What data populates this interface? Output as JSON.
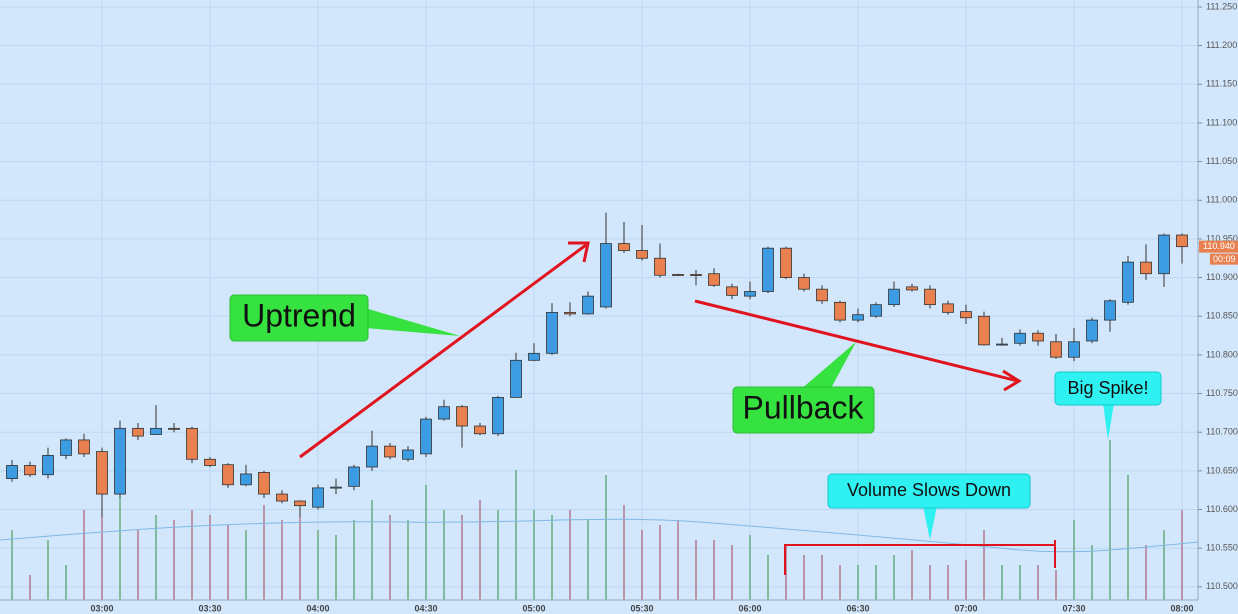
{
  "chart_data": {
    "type": "candlestick",
    "categories": [
      null,
      null,
      null,
      null,
      null,
      "03:00",
      null,
      null,
      null,
      null,
      null,
      "03:30",
      null,
      null,
      null,
      null,
      null,
      "04:00",
      null,
      null,
      null,
      null,
      null,
      "04:30",
      null,
      null,
      null,
      null,
      null,
      "05:00",
      null,
      null,
      null,
      null,
      null,
      "05:30",
      null,
      null,
      null,
      null,
      null,
      "06:00",
      null,
      null,
      null,
      null,
      null,
      "06:30",
      null,
      null,
      null,
      null,
      null,
      "07:00",
      null,
      null,
      null,
      null,
      null,
      "07:30",
      null,
      null,
      null,
      null,
      null,
      "08:00"
    ],
    "open": [
      110.64,
      110.657,
      110.645,
      110.67,
      110.69,
      110.675,
      110.62,
      110.705,
      110.697,
      110.705,
      110.705,
      110.665,
      110.658,
      110.632,
      110.648,
      110.62,
      110.611,
      110.603,
      110.628,
      110.63,
      110.655,
      110.682,
      110.665,
      110.672,
      110.717,
      110.733,
      110.708,
      110.698,
      110.745,
      110.793,
      110.802,
      110.855,
      110.853,
      110.862,
      110.944,
      110.935,
      110.925,
      110.904,
      110.904,
      110.905,
      110.888,
      110.876,
      110.882,
      110.938,
      110.9,
      110.885,
      110.868,
      110.845,
      110.85,
      110.865,
      110.888,
      110.885,
      110.866,
      110.856,
      110.85,
      110.813,
      110.815,
      110.828,
      110.817,
      110.797,
      110.818,
      110.845,
      110.868,
      110.92,
      110.905,
      110.955
    ],
    "high": [
      110.664,
      110.662,
      110.68,
      110.692,
      110.698,
      110.68,
      110.715,
      110.712,
      110.735,
      110.712,
      110.707,
      110.668,
      110.66,
      110.658,
      110.65,
      110.625,
      110.612,
      110.632,
      110.64,
      110.658,
      110.702,
      110.686,
      110.682,
      110.72,
      110.742,
      110.735,
      110.712,
      110.747,
      110.803,
      110.815,
      110.867,
      110.868,
      110.882,
      110.984,
      110.972,
      110.968,
      110.944,
      110.905,
      110.91,
      110.912,
      110.892,
      110.895,
      110.94,
      110.94,
      110.905,
      110.89,
      110.87,
      110.86,
      110.868,
      110.895,
      110.892,
      110.89,
      110.87,
      110.865,
      110.856,
      110.822,
      110.833,
      110.832,
      110.827,
      110.835,
      110.848,
      110.872,
      110.928,
      110.943,
      110.957,
      110.957
    ],
    "low": [
      110.636,
      110.642,
      110.64,
      110.665,
      110.668,
      110.59,
      110.615,
      110.69,
      110.697,
      110.7,
      110.66,
      110.655,
      110.628,
      110.63,
      110.615,
      110.608,
      110.59,
      110.6,
      110.62,
      110.625,
      110.65,
      110.665,
      110.662,
      110.668,
      110.715,
      110.68,
      110.696,
      110.695,
      110.745,
      110.792,
      110.8,
      110.85,
      110.852,
      110.86,
      110.932,
      110.922,
      110.9,
      110.902,
      110.89,
      110.888,
      110.872,
      110.872,
      110.88,
      110.898,
      110.882,
      110.866,
      110.842,
      110.842,
      110.848,
      110.862,
      110.882,
      110.86,
      110.852,
      110.84,
      110.812,
      110.812,
      110.812,
      110.812,
      110.795,
      110.792,
      110.815,
      110.83,
      110.865,
      110.897,
      110.888,
      110.918
    ],
    "close": [
      110.657,
      110.645,
      110.67,
      110.69,
      110.672,
      110.62,
      110.705,
      110.695,
      110.705,
      110.704,
      110.665,
      110.657,
      110.632,
      110.646,
      110.62,
      110.611,
      110.605,
      110.628,
      110.629,
      110.655,
      110.682,
      110.668,
      110.677,
      110.717,
      110.733,
      110.708,
      110.698,
      110.745,
      110.793,
      110.802,
      110.855,
      110.853,
      110.876,
      110.944,
      110.935,
      110.925,
      110.903,
      110.903,
      110.903,
      110.89,
      110.877,
      110.882,
      110.938,
      110.9,
      110.885,
      110.87,
      110.845,
      110.852,
      110.865,
      110.885,
      110.884,
      110.865,
      110.855,
      110.848,
      110.813,
      110.814,
      110.828,
      110.818,
      110.797,
      110.817,
      110.845,
      110.87,
      110.92,
      110.905,
      110.955,
      110.94
    ],
    "volume": [
      70,
      25,
      60,
      35,
      90,
      95,
      110,
      70,
      85,
      80,
      90,
      85,
      75,
      70,
      95,
      80,
      85,
      70,
      65,
      80,
      100,
      85,
      80,
      115,
      90,
      85,
      100,
      90,
      130,
      90,
      85,
      90,
      80,
      125,
      95,
      70,
      75,
      80,
      60,
      60,
      55,
      65,
      45,
      55,
      45,
      45,
      35,
      35,
      35,
      45,
      50,
      35,
      35,
      40,
      70,
      35,
      35,
      35,
      30,
      80,
      55,
      160,
      125,
      55,
      70,
      90
    ],
    "up_color": "#3d9be2",
    "down_color": "#e8814f",
    "volume_up_color": "#2f8f3c",
    "volume_down_color": "#a3405a",
    "ylim": [
      110.483,
      111.259
    ],
    "y2lim": [
      0,
      200
    ],
    "yticks": [
      {
        "value": 110.5,
        "label": "110.500"
      },
      {
        "value": 110.55,
        "label": "110.550"
      },
      {
        "value": 110.6,
        "label": "110.600"
      },
      {
        "value": 110.65,
        "label": "110.650"
      },
      {
        "value": 110.7,
        "label": "110.700"
      },
      {
        "value": 110.75,
        "label": "110.750"
      },
      {
        "value": 110.8,
        "label": "110.800"
      },
      {
        "value": 110.85,
        "label": "110.850"
      },
      {
        "value": 110.9,
        "label": "110.900"
      },
      {
        "value": 110.95,
        "label": "110.950"
      },
      {
        "value": 111.0,
        "label": "111.000"
      },
      {
        "value": 111.05,
        "label": "111.050"
      },
      {
        "value": 111.1,
        "label": "111.100"
      },
      {
        "value": 111.15,
        "label": "111.150"
      },
      {
        "value": 111.2,
        "label": "111.200"
      },
      {
        "value": 111.25,
        "label": "111.250"
      }
    ],
    "grid": true,
    "last_price": {
      "value": 110.94,
      "label": "110.940"
    },
    "countdown": "00:09",
    "annotations": {
      "uptrend": "Uptrend",
      "pullback": "Pullback",
      "big_spike": "Big Spike!",
      "volume_slows": "Volume Slows Down"
    }
  }
}
